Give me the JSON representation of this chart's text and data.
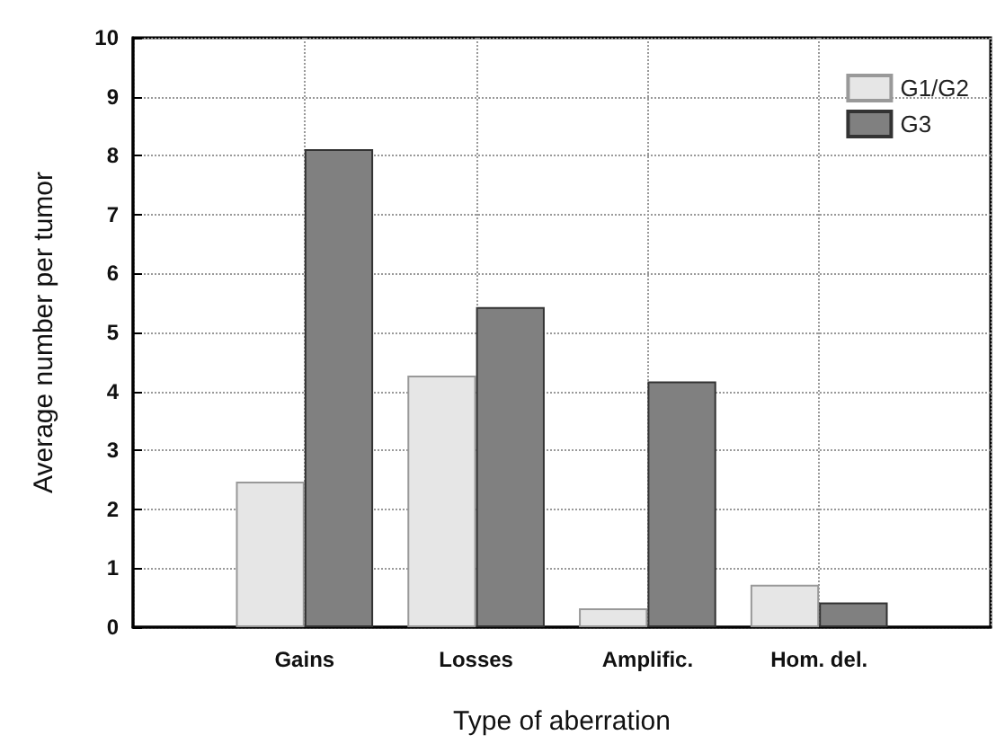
{
  "chart_data": {
    "type": "bar",
    "xlabel": "Type of aberration",
    "ylabel": "Average number per tumor",
    "categories": [
      "Gains",
      "Losses",
      "Amplific.",
      "Hom. del."
    ],
    "series": [
      {
        "name": "G1/G2",
        "color": "#e6e6e6",
        "values": [
          2.47,
          4.27,
          0.32,
          0.72
        ]
      },
      {
        "name": "G3",
        "color": "#808080",
        "values": [
          8.11,
          5.43,
          4.17,
          0.42
        ]
      }
    ],
    "ylim": [
      0,
      10
    ],
    "yticks": [
      0,
      1,
      2,
      3,
      4,
      5,
      6,
      7,
      8,
      9,
      10
    ],
    "grid": true,
    "legend": "top right"
  }
}
